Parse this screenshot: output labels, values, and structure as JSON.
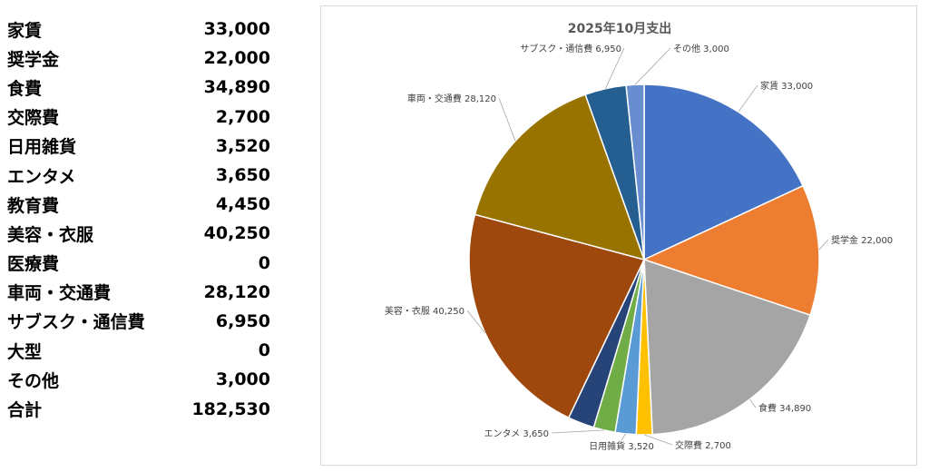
{
  "table": {
    "rows": [
      {
        "label": "家賃",
        "amount": "33,000"
      },
      {
        "label": "奨学金",
        "amount": "22,000"
      },
      {
        "label": "食費",
        "amount": "34,890"
      },
      {
        "label": "交際費",
        "amount": "2,700"
      },
      {
        "label": "日用雑貨",
        "amount": "3,520"
      },
      {
        "label": "エンタメ",
        "amount": "3,650"
      },
      {
        "label": "教育費",
        "amount": "4,450"
      },
      {
        "label": "美容・衣服",
        "amount": "40,250"
      },
      {
        "label": "医療費",
        "amount": "0"
      },
      {
        "label": "車両・交通費",
        "amount": "28,120"
      },
      {
        "label": "サブスク・通信費",
        "amount": "6,950"
      },
      {
        "label": "大型",
        "amount": "0"
      },
      {
        "label": "その他",
        "amount": "3,000"
      },
      {
        "label": "合計",
        "amount": "182,530"
      }
    ]
  },
  "chart_data": {
    "type": "pie",
    "title": "2025年10月支出",
    "categories": [
      "家賃",
      "奨学金",
      "食費",
      "交際費",
      "日用雑貨",
      "エンタメ",
      "教育費",
      "美容・衣服",
      "医療費",
      "車両・交通費",
      "サブスク・通信費",
      "大型",
      "その他"
    ],
    "values": [
      33000,
      22000,
      34890,
      2700,
      3520,
      3650,
      4450,
      40250,
      0,
      28120,
      6950,
      0,
      3000
    ],
    "data_labels": [
      "家賃 33,000",
      "奨学金 22,000",
      "食費 34,890",
      "交際費 2,700",
      "日用雑貨 3,520",
      "エンタメ 3,650",
      "",
      "美容・衣服 40,250",
      "",
      "車両・交通費 28,120",
      "サブスク・通信費 6,950",
      "",
      "その他 3,000"
    ],
    "colors": [
      "#4472C4",
      "#ED7D31",
      "#A5A5A5",
      "#FFC000",
      "#5B9BD5",
      "#70AD47",
      "#264478",
      "#9E480E",
      "#636363",
      "#997300",
      "#255E91",
      "#43682B",
      "#698ED0"
    ],
    "start_angle_deg": 0,
    "direction": "clockwise"
  }
}
